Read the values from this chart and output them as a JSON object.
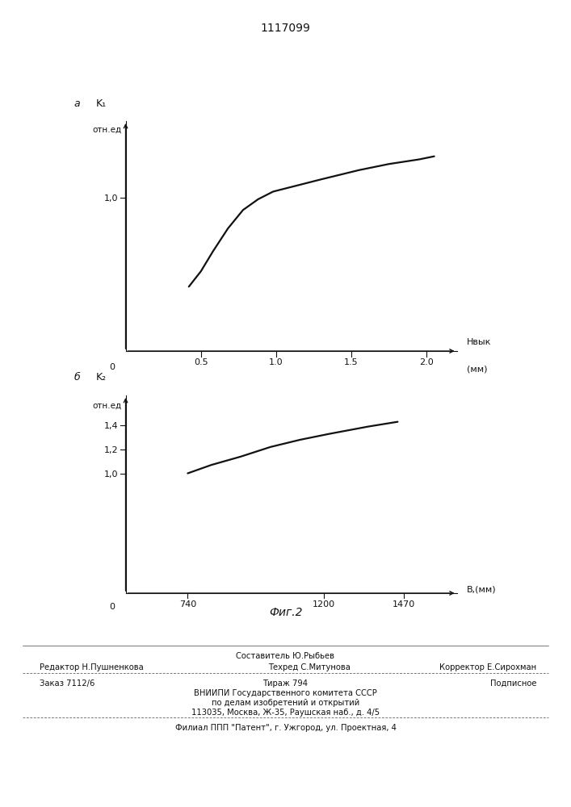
{
  "title": "1117099",
  "title_fontsize": 10,
  "plot_a_label": "a",
  "plot_a_ylabel_line1": "K₁",
  "plot_a_ylabel_line2": "отн.ед",
  "plot_a_xlabel1": "Hвык",
  "plot_a_xlabel2": "(мм)",
  "plot_a_xticks": [
    0.5,
    1.0,
    1.5,
    2.0
  ],
  "plot_a_ytick_val": 1.0,
  "plot_a_x": [
    0.42,
    0.5,
    0.58,
    0.68,
    0.78,
    0.88,
    0.98,
    1.1,
    1.3,
    1.55,
    1.75,
    1.95,
    2.05
  ],
  "plot_a_y": [
    0.42,
    0.52,
    0.65,
    0.8,
    0.92,
    0.99,
    1.04,
    1.07,
    1.12,
    1.18,
    1.22,
    1.25,
    1.27
  ],
  "plot_a_xlim": [
    0,
    2.2
  ],
  "plot_a_ylim": [
    0,
    1.5
  ],
  "plot_b_label": "б",
  "plot_b_ylabel_line1": "K₂",
  "plot_b_ylabel_line2": "отн.ед",
  "plot_b_xlabel": "B,(мм)",
  "plot_b_xticks": [
    740,
    1200,
    1470
  ],
  "plot_b_yticks": [
    1.0,
    1.2,
    1.4
  ],
  "plot_b_ytick_labels": [
    "1,0",
    "1,2",
    "1,4"
  ],
  "plot_b_x": [
    740,
    820,
    920,
    1020,
    1120,
    1220,
    1350,
    1450
  ],
  "plot_b_y": [
    1.0,
    1.07,
    1.14,
    1.22,
    1.28,
    1.33,
    1.39,
    1.43
  ],
  "plot_b_xlim": [
    530,
    1650
  ],
  "plot_b_ylim": [
    0,
    1.65
  ],
  "fig2_label": "Фиг.2",
  "footer_sestavitel": "Составитель Ю.Рыбьев",
  "footer_tehred": "Техред С.Митунова",
  "footer_redaktor": "Редактор Н.Пушненкова",
  "footer_korrektor": "Корректор Е.Сирохман",
  "footer_zakaz": "Заказ 7112/6",
  "footer_tirazh": "Тираж 794",
  "footer_podpisnoe": "Подписное",
  "footer_vniipii": "ВНИИПИ Государственного комитета СССР",
  "footer_po_delam": "по делам изобретений и открытий",
  "footer_address": "113035, Москва, Ж-35, Раушская наб., д. 4/5",
  "footer_filial": "Филиал ППП \"Патент\", г. Ужгород, ул. Проектная, 4",
  "background_color": "#ffffff",
  "line_color": "#111111",
  "text_color": "#111111"
}
